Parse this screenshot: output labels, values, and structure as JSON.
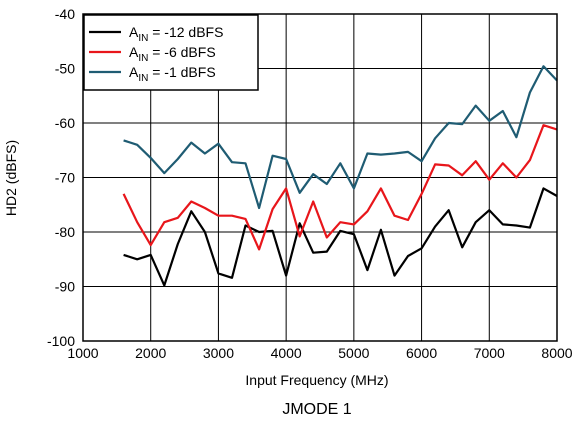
{
  "chart_data": {
    "type": "line",
    "xlabel": "Input Frequency (MHz)",
    "ylabel": "HD2 (dBFS)",
    "caption": "JMODE 1",
    "xlim": [
      1000,
      8000
    ],
    "ylim": [
      -100,
      -40
    ],
    "xticks": [
      "1000",
      "2000",
      "3000",
      "4000",
      "5000",
      "6000",
      "7000",
      "8000"
    ],
    "yticks": [
      "-40",
      "-50",
      "-60",
      "-70",
      "-80",
      "-90",
      "-100"
    ],
    "grid": true,
    "legend_position": "top-left",
    "x": [
      1600,
      1800,
      2000,
      2200,
      2400,
      2600,
      2800,
      3000,
      3200,
      3400,
      3600,
      3800,
      4000,
      4200,
      4400,
      4600,
      4800,
      5000,
      5200,
      5400,
      5600,
      5800,
      6000,
      6200,
      6400,
      6600,
      6800,
      7000,
      7200,
      7400,
      7600,
      7800,
      8000
    ],
    "series": [
      {
        "name_main": "A",
        "name_sub": "IN",
        "name_rest": " = -12 dBFS",
        "color": "#000000",
        "values": [
          -84.2,
          -85,
          -84.2,
          -89.8,
          -82.2,
          -76.2,
          -80,
          -87.6,
          -88.4,
          -78.8,
          -80,
          -79.8,
          -88,
          -78.4,
          -83.8,
          -83.6,
          -79.8,
          -80.4,
          -87,
          -79.6,
          -88,
          -84.4,
          -83,
          -79,
          -76,
          -82.8,
          -78.2,
          -76,
          -78.6,
          -78.8,
          -79.2,
          -72,
          -73.4
        ]
      },
      {
        "name_main": "A",
        "name_sub": "IN",
        "name_rest": " = -6 dBFS",
        "color": "#e8161b",
        "values": [
          -73,
          -78.2,
          -82.4,
          -78.2,
          -77.4,
          -74.4,
          -75.6,
          -77,
          -77,
          -77.6,
          -83.2,
          -75.8,
          -72,
          -80.8,
          -74.4,
          -81,
          -78.2,
          -78.6,
          -76.2,
          -72,
          -77,
          -77.8,
          -73,
          -67.6,
          -67.8,
          -69.6,
          -67,
          -70.4,
          -67.4,
          -70,
          -66.8,
          -60.4,
          -61.2
        ]
      },
      {
        "name_main": "A",
        "name_sub": "IN",
        "name_rest": " = -1 dBFS",
        "color": "#1f5c73",
        "values": [
          -63.2,
          -64,
          -66.4,
          -69.2,
          -66.6,
          -63.6,
          -65.6,
          -63.8,
          -67.2,
          -67.4,
          -75.6,
          -66,
          -66.6,
          -72.8,
          -69.4,
          -71.2,
          -67.4,
          -72,
          -65.6,
          -65.8,
          -65.6,
          -65.3,
          -67,
          -62.8,
          -60,
          -60.2,
          -56.8,
          -59.6,
          -57.8,
          -62.6,
          -54.4,
          -49.6,
          -52.2
        ]
      }
    ]
  }
}
